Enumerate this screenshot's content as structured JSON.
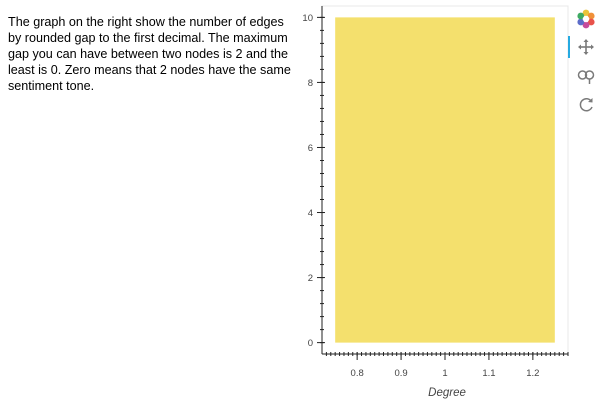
{
  "description": "The graph on the right show the number of edges by rounded gap to the first decimal. The maximum gap you can have between two nodes is 2 and the least is 0. Zero means that 2 nodes have the same sentiment tone.",
  "chart_data": {
    "type": "bar",
    "xlabel": "Degree",
    "ylabel": "",
    "bars": [
      {
        "left": 0.75,
        "right": 1.25,
        "value": 10
      }
    ],
    "bar_color": "#f4e06d",
    "xlim": [
      0.72,
      1.28
    ],
    "ylim": [
      -0.35,
      10.35
    ],
    "x_ticks": [
      "0.8",
      "0.9",
      "1",
      "1.1",
      "1.2"
    ],
    "y_ticks": [
      "0",
      "2",
      "4",
      "6",
      "8",
      "10"
    ],
    "grid": false,
    "legend": "none"
  },
  "toolbar": {
    "tools": [
      {
        "name": "bokeh-logo-icon",
        "active": false
      },
      {
        "name": "pan-icon",
        "active": true
      },
      {
        "name": "wheel-zoom-icon",
        "active": false
      },
      {
        "name": "reset-icon",
        "active": false
      }
    ],
    "active_color": "#26aae1"
  }
}
